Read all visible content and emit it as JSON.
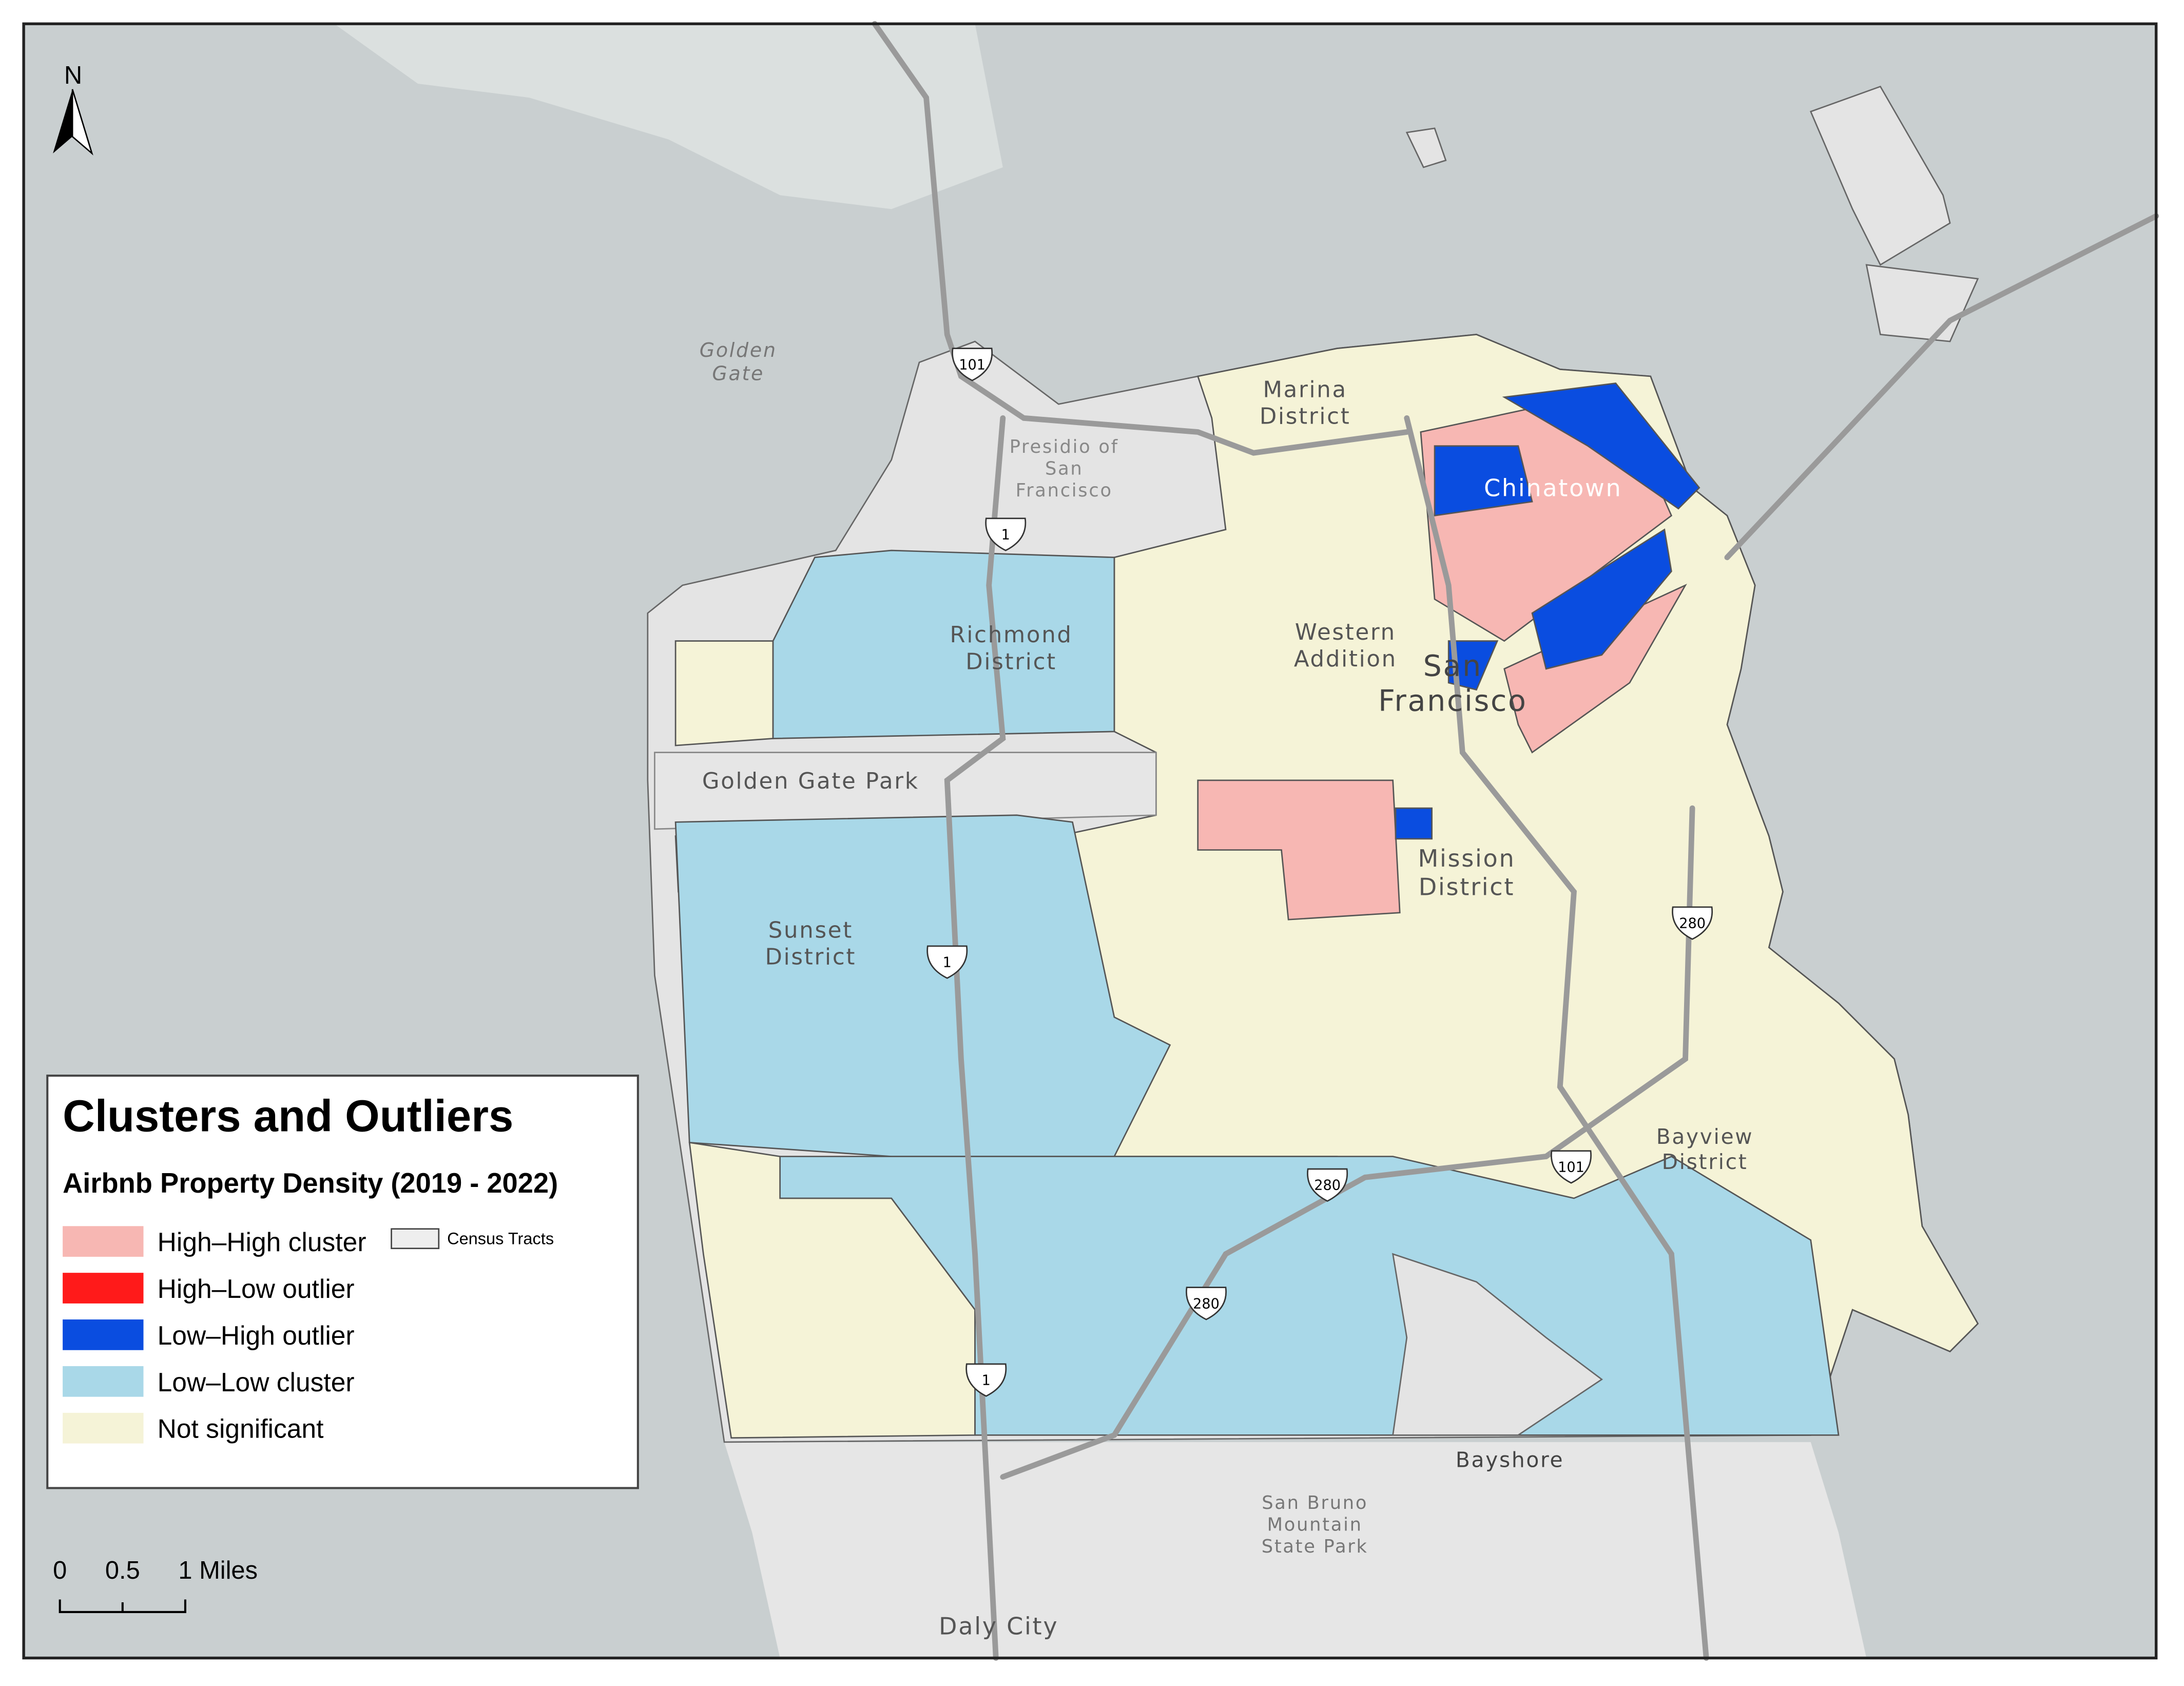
{
  "north_arrow": "N",
  "legend": {
    "title": "Clusters and Outliers",
    "subtitle": "Airbnb Property Density (2019 - 2022)",
    "items": [
      {
        "label": "High–High cluster",
        "color": "#f7b7b3"
      },
      {
        "label": "High–Low outlier",
        "color": "#ff1a1a"
      },
      {
        "label": "Low–High outlier",
        "color": "#0a4de0"
      },
      {
        "label": "Low–Low cluster",
        "color": "#a9d8e8"
      },
      {
        "label": "Not significant",
        "color": "#f5f3d7"
      }
    ],
    "census_tracts": "Census Tracts"
  },
  "places": [
    {
      "lines": [
        "Golden",
        "Gate"
      ]
    },
    {
      "lines": [
        "Presidio of",
        "San",
        "Francisco"
      ]
    },
    {
      "lines": [
        "Marina",
        "District"
      ]
    },
    {
      "lines": [
        "Richmond",
        "District"
      ]
    },
    {
      "lines": [
        "Western",
        "Addition"
      ]
    },
    {
      "lines": [
        "Chinatown"
      ]
    },
    {
      "lines": [
        "San",
        "Francisco"
      ]
    },
    {
      "lines": [
        "Golden Gate Park"
      ]
    },
    {
      "lines": [
        "Sunset",
        "District"
      ]
    },
    {
      "lines": [
        "Mission",
        "District"
      ]
    },
    {
      "lines": [
        "Bayview",
        "District"
      ]
    },
    {
      "lines": [
        "Bayshore"
      ]
    },
    {
      "lines": [
        "San Bruno",
        "Mountain",
        "State Park"
      ]
    },
    {
      "lines": [
        "Daly City"
      ]
    }
  ],
  "highways": [
    "101",
    "1",
    "1",
    "1",
    "280",
    "280",
    "101",
    "280"
  ],
  "scale_bar": {
    "labels": [
      "0",
      "0.5",
      "1 Miles"
    ]
  }
}
